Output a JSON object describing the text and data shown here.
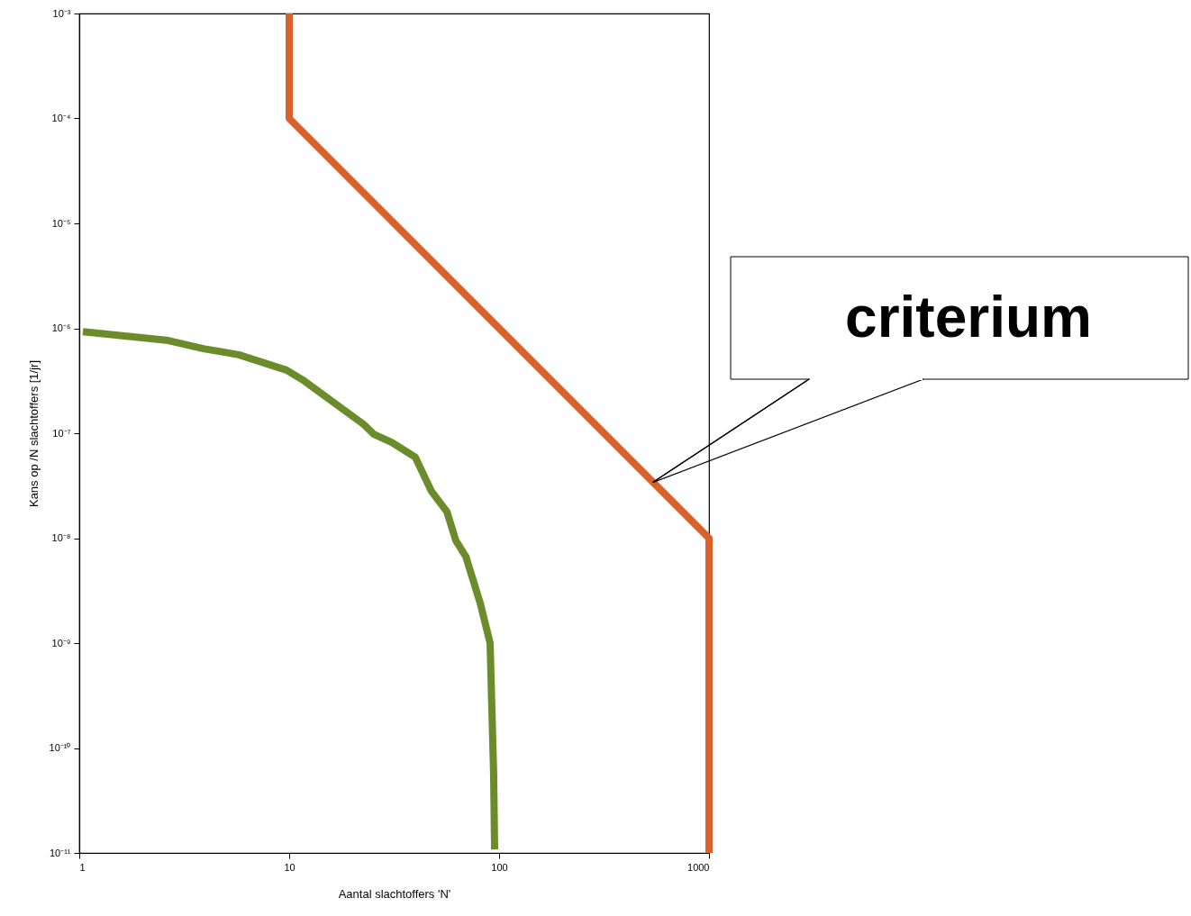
{
  "chart_data": {
    "type": "line",
    "xlabel": "Aantal slachtoffers 'N'",
    "ylabel": "Kans op /N slachtoffers [1/jr]",
    "log": "xy",
    "grid": false,
    "marker": "none",
    "line_style": "solid",
    "xlim": [
      1,
      1000
    ],
    "xticks": [
      1,
      10,
      100,
      1000
    ],
    "ylim": [
      1e-11,
      0.001
    ],
    "yticks": [
      {
        "value": 1e-11,
        "label": "10⁻¹¹"
      },
      {
        "value": 1e-10,
        "label": "10⁻¹⁰"
      },
      {
        "value": 1e-09,
        "label": "10⁻⁹"
      },
      {
        "value": 1e-08,
        "label": "10⁻⁸"
      },
      {
        "value": 1e-07,
        "label": "10⁻⁷"
      },
      {
        "value": 1e-06,
        "label": "10⁻⁶"
      },
      {
        "value": 1e-05,
        "label": "10⁻⁵"
      },
      {
        "value": 0.0001,
        "label": "10⁻⁴"
      },
      {
        "value": 0.001,
        "label": "10⁻³"
      }
    ],
    "series": [
      {
        "color": "#6b8c2a",
        "x": [
          1.04,
          2.6,
          3.9,
          5.75,
          9.7,
          11.8,
          22.7,
          25.3,
          30.8,
          39.9,
          47.6,
          56.4,
          62.2,
          69.4,
          81.3,
          90.6,
          94.2,
          95.2
        ],
        "values": [
          9.3e-07,
          7.7e-07,
          6.4e-07,
          5.6e-07,
          4e-07,
          3.15e-07,
          1.21e-07,
          9.8e-08,
          8.2e-08,
          5.9e-08,
          2.8e-08,
          1.79e-08,
          9.5e-09,
          6.7e-09,
          2.4e-09,
          1e-09,
          5.6e-11,
          1.08e-11
        ]
      },
      {
        "color": "#d9622b",
        "x": [
          10,
          10,
          1000,
          1000
        ],
        "values": [
          0.001,
          0.0001,
          1e-08,
          1e-11
        ]
      }
    ],
    "annotations": [
      {
        "text": "criterium",
        "x": 540,
        "y": 3.4e-08
      }
    ]
  }
}
